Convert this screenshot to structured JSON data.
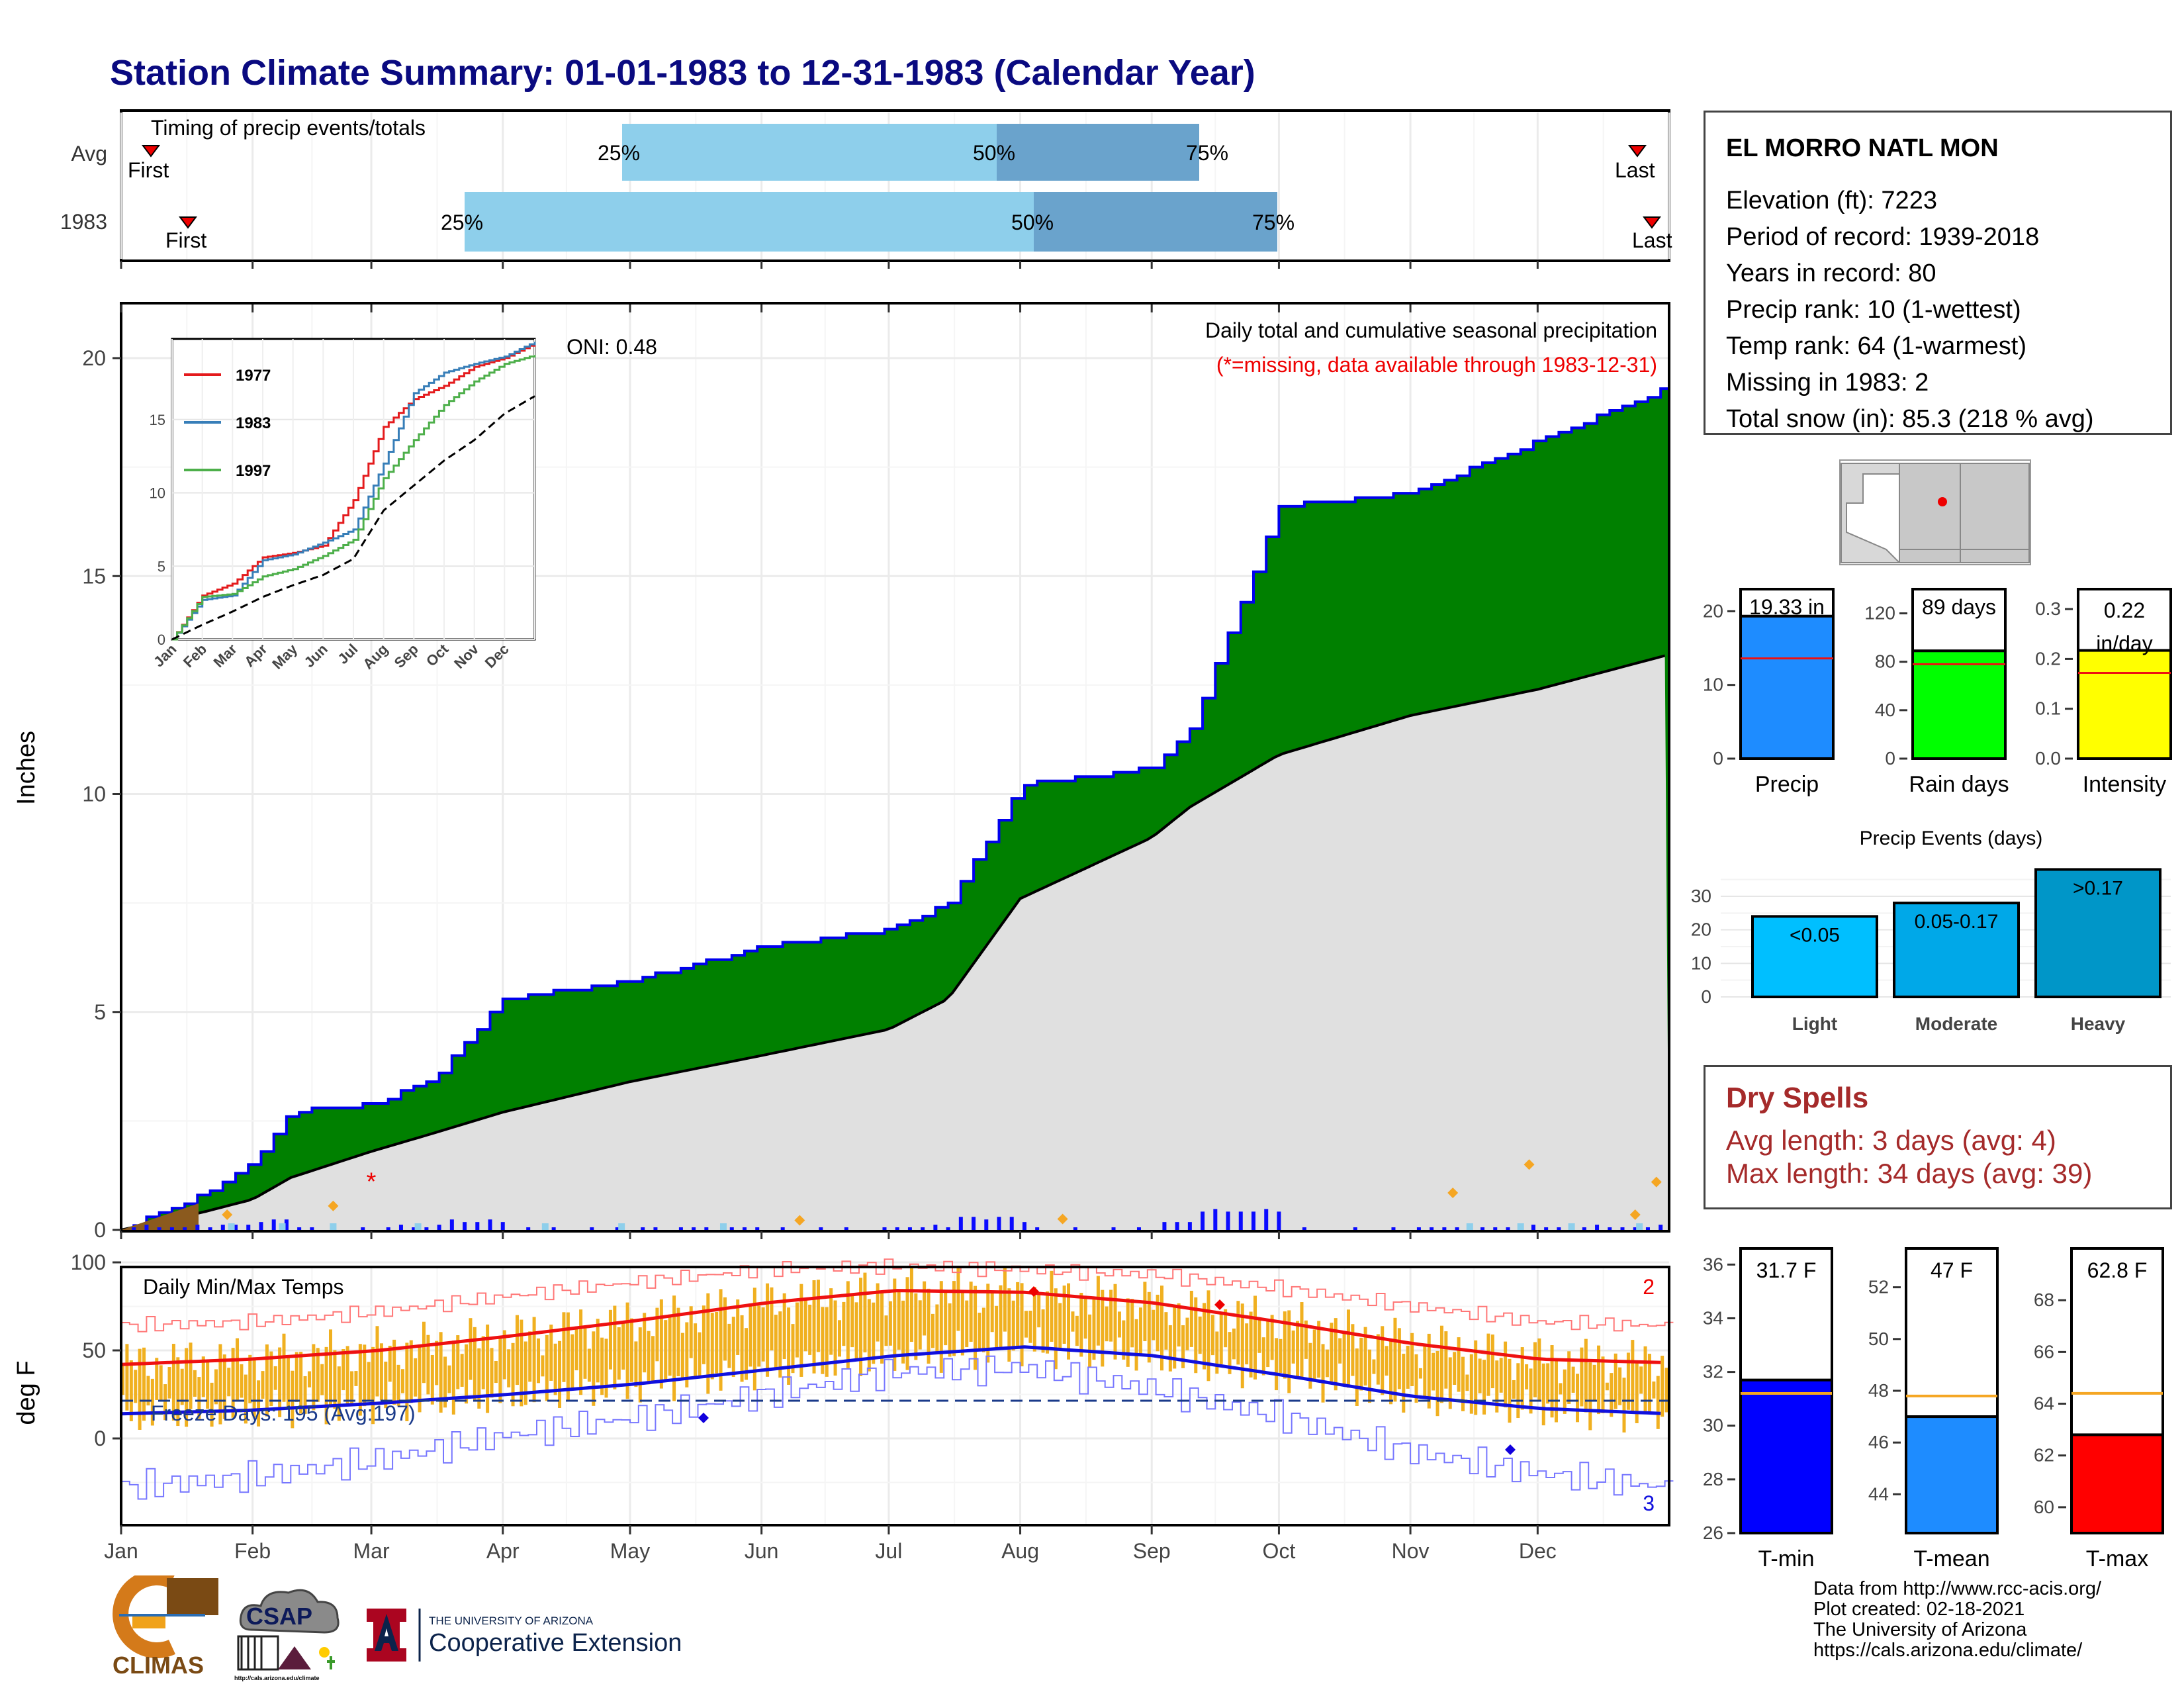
{
  "title": "Station Climate Summary: 01-01-1983 to 12-31-1983 (Calendar Year)",
  "colors": {
    "title": "#0a0a80",
    "cum_precip_fill": "#008000",
    "cum_precip_line": "#0000ee",
    "normal_precip_fill": "#e0e0e0",
    "snow_fill": "#8b5a1e",
    "daily_bar": "#0a0aff",
    "light_blue_bar": "#8ecfeb",
    "mid_blue_bar": "#6aa3cc",
    "temp_bar": "#f0b020",
    "tmax_line": "#ee1111",
    "tmin_line": "#1010dd",
    "precip_bar": "#1e8cff",
    "raindays_bar": "#00ff00",
    "intensity_bar": "#ffff00",
    "light_bar": "#00bfff",
    "moderate_bar": "#00a8e8",
    "heavy_bar": "#0096c8",
    "dry_spell_text": "#a52a2a",
    "avg_marker": "#ff2222"
  },
  "timing": {
    "label": "Timing of precip events/totals",
    "rows": [
      "Avg",
      "1983"
    ],
    "first_label": "First",
    "last_label": "Last",
    "pct_labels": [
      "25%",
      "50%",
      "75%"
    ]
  },
  "main_panel": {
    "ylabel": "Inches",
    "caption": "Daily total and cumulative seasonal precipitation",
    "missing_note": "(*=missing, data available through 1983-12-31)",
    "oni": "ONI: 0.48",
    "yticks": [
      "0",
      "5",
      "10",
      "15",
      "20"
    ]
  },
  "inset": {
    "legend": [
      "1977",
      "1983",
      "1997"
    ],
    "yticks": [
      "0",
      "5",
      "10",
      "15"
    ],
    "xticks": [
      "Jan",
      "Feb",
      "Mar",
      "Apr",
      "May",
      "Jun",
      "Jul",
      "Aug",
      "Sep",
      "Oct",
      "Nov",
      "Dec"
    ]
  },
  "temp_panel": {
    "ylabel": "deg F",
    "label": "Daily Min/Max Temps",
    "freeze": "Freeze Days: 195 (Avg:197)",
    "record_high_count": "2",
    "record_low_count": "3",
    "yticks": [
      "0",
      "50",
      "100"
    ]
  },
  "months": [
    "Jan",
    "Feb",
    "Mar",
    "Apr",
    "May",
    "Jun",
    "Jul",
    "Aug",
    "Sep",
    "Oct",
    "Nov",
    "Dec"
  ],
  "station": {
    "name": "EL MORRO NATL MON",
    "lines": [
      "Elevation (ft): 7223",
      "Period of record: 1939-2018",
      "Years in record: 80",
      "Precip rank: 10 (1-wettest)",
      "Temp rank: 64 (1-warmest)",
      "Missing in 1983: 2",
      "Total snow (in): 85.3 (218 % avg)"
    ]
  },
  "summary_bars": [
    {
      "label": "Precip",
      "value_text": "19.33 in",
      "value": 19.33,
      "avg": 13.6,
      "max": 23,
      "ticks": [
        "0",
        "10",
        "20"
      ],
      "tickvals": [
        0,
        10,
        20
      ]
    },
    {
      "label": "Rain days",
      "value_text": "89 days",
      "value": 89,
      "avg": 78,
      "max": 140,
      "ticks": [
        "0",
        "40",
        "80",
        "120"
      ],
      "tickvals": [
        0,
        40,
        80,
        120
      ]
    },
    {
      "label": "Intensity",
      "value_text": "0.22 in/day",
      "value": 0.217,
      "avg": 0.172,
      "max": 0.34,
      "ticks": [
        "0.0",
        "0.1",
        "0.2",
        "0.3"
      ],
      "tickvals": [
        0.0,
        0.1,
        0.2,
        0.3
      ]
    }
  ],
  "events": {
    "title": "Precip Events (days)",
    "categories": [
      "Light",
      "Moderate",
      "Heavy"
    ],
    "range_labels": [
      "<0.05",
      "0.05-0.17",
      ">0.17"
    ],
    "values": [
      24,
      28,
      38
    ],
    "yticks": [
      "0",
      "10",
      "20",
      "30"
    ]
  },
  "dry_spells": {
    "title": "Dry Spells",
    "avg": "Avg length: 3 days (avg: 4)",
    "max": "Max length: 34 days (avg: 39)"
  },
  "temp_bars": [
    {
      "label": "T-min",
      "value_text": "31.7 F",
      "value": 31.7,
      "avg": 31.2,
      "min": 26,
      "max": 36.6,
      "ticks": [
        "26",
        "28",
        "30",
        "32",
        "34",
        "36"
      ]
    },
    {
      "label": "T-mean",
      "value_text": "47 F",
      "value": 47,
      "avg": 47.8,
      "min": 42.5,
      "max": 53.5,
      "ticks": [
        "44",
        "46",
        "48",
        "50",
        "52"
      ]
    },
    {
      "label": "T-max",
      "value_text": "62.8 F",
      "value": 62.8,
      "avg": 64.4,
      "min": 59,
      "max": 70,
      "ticks": [
        "60",
        "62",
        "64",
        "66",
        "68"
      ]
    }
  ],
  "credits": [
    "Data from http://www.rcc-acis.org/",
    "Plot created: 02-18-2021",
    "The University of Arizona",
    "https://cals.arizona.edu/climate/"
  ],
  "logos": {
    "climas": "CLIMAS",
    "csap": "CSAP",
    "univ": "THE UNIVERSITY OF ARIZONA",
    "ext": "Cooperative Extension",
    "csap_url": "http://cals.arizona.edu/climate"
  },
  "chart_data": [
    {
      "type": "area",
      "title": "Daily total and cumulative seasonal precipitation",
      "ylabel": "Inches",
      "ylim": [
        0,
        21
      ],
      "x": [
        "Jan 1",
        "Jan 20",
        "Feb 1",
        "Feb 10",
        "Mar 1",
        "Mar 15",
        "Apr 1",
        "May 1",
        "Jun 1",
        "Jul 1",
        "Jul 15",
        "Aug 1",
        "Sep 1",
        "Sep 10",
        "Oct 1",
        "Nov 1",
        "Dec 1",
        "Dec 31"
      ],
      "series": [
        {
          "name": "1983",
          "values": [
            0,
            0.8,
            1.6,
            2.7,
            2.9,
            3.4,
            5.3,
            5.7,
            6.5,
            6.9,
            7.5,
            10.2,
            10.6,
            11.5,
            16.6,
            16.9,
            18.1,
            19.33
          ]
        },
        {
          "values": [
            0,
            0.4,
            0.7,
            1.2,
            1.8,
            2.2,
            2.7,
            3.4,
            4.0,
            4.6,
            5.3,
            7.6,
            9.0,
            9.7,
            10.9,
            11.8,
            12.4,
            13.2
          ]
        }
      ]
    },
    {
      "type": "line",
      "ylim": [
        0,
        20
      ],
      "x": [
        "Jan",
        "Feb",
        "Mar",
        "Apr",
        "May",
        "Jun",
        "Jul",
        "Aug",
        "Sep",
        "Oct",
        "Nov",
        "Dec",
        "Jan"
      ],
      "series": [
        {
          "name": "1977",
          "values": [
            0,
            3,
            3.8,
            5.6,
            5.9,
            6.4,
            9.5,
            14.5,
            16.4,
            17.3,
            18.6,
            19.2,
            20.2
          ]
        },
        {
          "name": "1983",
          "values": [
            0,
            2.7,
            3.0,
            5.4,
            5.8,
            6.6,
            7.5,
            12.0,
            16.8,
            18.2,
            18.8,
            19.3,
            20.3
          ]
        },
        {
          "name": "1997",
          "values": [
            0,
            2.9,
            3.1,
            4.3,
            4.8,
            5.7,
            6.8,
            11.0,
            13.6,
            16.0,
            17.6,
            18.8,
            19.4
          ]
        },
        {
          "values": [
            0,
            1.0,
            1.9,
            2.9,
            3.7,
            4.4,
            5.5,
            8.8,
            10.5,
            12.2,
            13.6,
            15.4,
            16.6
          ]
        }
      ]
    },
    {
      "type": "line",
      "title": "Daily Min/Max Temps",
      "ylabel": "deg F",
      "ylim": [
        -40,
        105
      ],
      "x": [
        "Jan",
        "Feb",
        "Mar",
        "Apr",
        "May",
        "Jun",
        "Jul",
        "Aug",
        "Sep",
        "Oct",
        "Nov",
        "Dec",
        "Jan"
      ],
      "series": [
        {
          "values": [
            42,
            45,
            50,
            58,
            67,
            77,
            84,
            83,
            77,
            66,
            54,
            45,
            43
          ]
        },
        {
          "values": [
            14,
            16,
            20,
            25,
            31,
            39,
            47,
            52,
            47,
            36,
            24,
            17,
            14
          ]
        },
        {
          "values": [
            64,
            66,
            72,
            81,
            89,
            96,
            98,
            96,
            93,
            85,
            75,
            66,
            64
          ]
        },
        {
          "values": [
            -28,
            -22,
            -12,
            2,
            12,
            25,
            38,
            40,
            28,
            12,
            -8,
            -20,
            -28
          ]
        }
      ]
    }
  ]
}
